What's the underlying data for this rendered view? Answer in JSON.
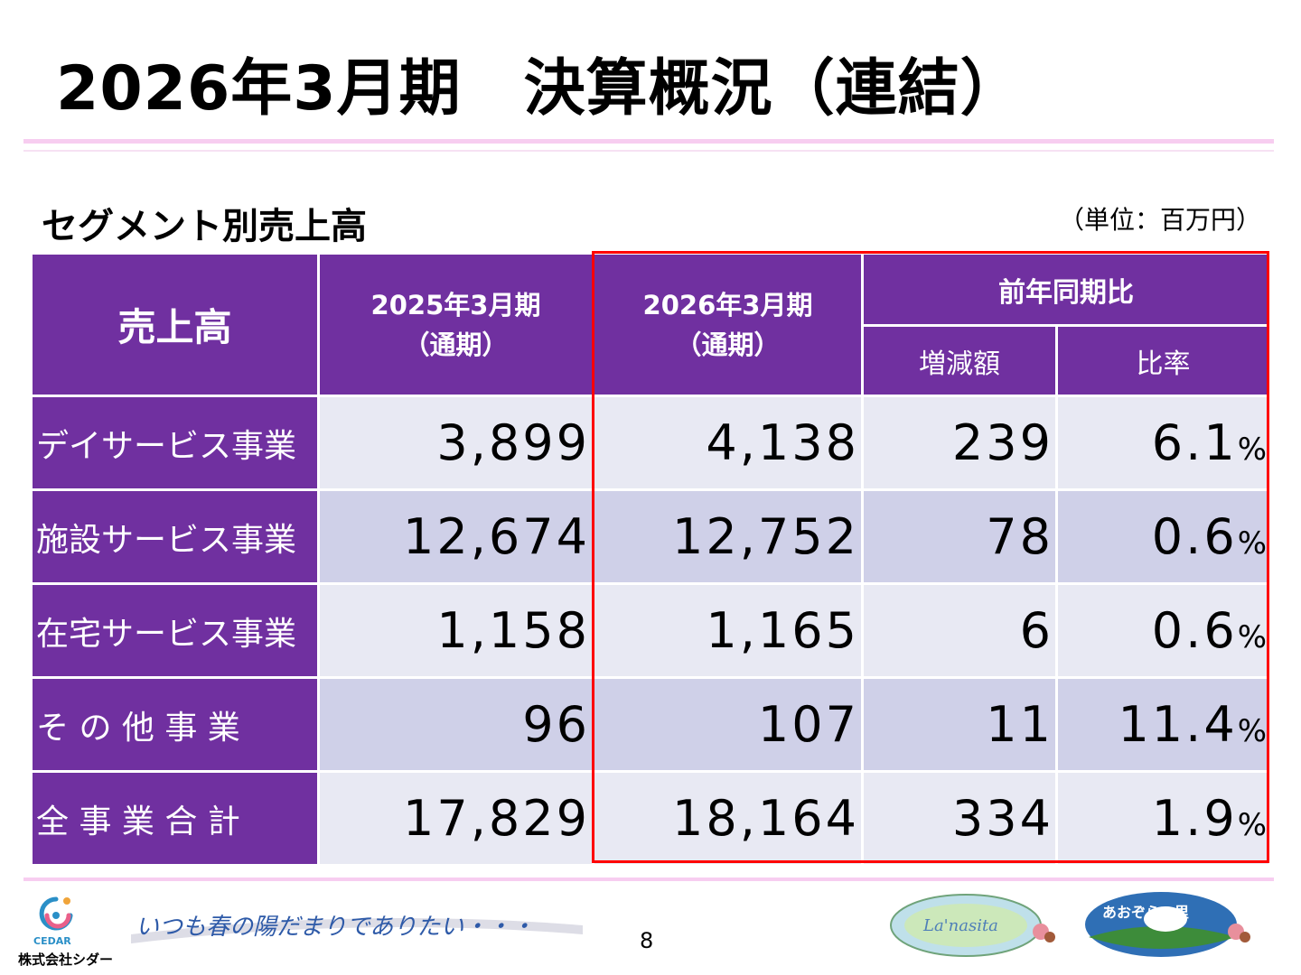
{
  "slide": {
    "title": "2026年3月期　決算概況（連結）",
    "subtitle": "セグメント別売上高",
    "unit": "（単位：百万円）",
    "page_number": "8"
  },
  "table": {
    "header_main": "売上高",
    "col_prev_line1": "2025年3月期",
    "col_prev_line2": "（通期）",
    "col_curr_line1": "2026年3月期",
    "col_curr_line2": "（通期）",
    "col_yoy": "前年同期比",
    "col_diff": "増減額",
    "col_ratio": "比率",
    "rows": [
      {
        "label": "デイサービス事業",
        "prev": "3,899",
        "curr": "4,138",
        "diff": "239",
        "ratio": "6.1",
        "pct": "%"
      },
      {
        "label": "施設サービス事業",
        "prev": "12,674",
        "curr": "12,752",
        "diff": "78",
        "ratio": "0.6",
        "pct": "%"
      },
      {
        "label": "在宅サービス事業",
        "prev": "1,158",
        "curr": "1,165",
        "diff": "6",
        "ratio": "0.6",
        "pct": "%"
      },
      {
        "label": "そ の 他 事 業",
        "prev": "96",
        "curr": "107",
        "diff": "11",
        "ratio": "11.4",
        "pct": "%"
      },
      {
        "label": "全 事 業 合 計",
        "prev": "17,829",
        "curr": "18,164",
        "diff": "334",
        "ratio": "1.9",
        "pct": "%"
      }
    ]
  },
  "footer": {
    "company_logo_text": "CEDAR",
    "company_name": "株式会社シダー",
    "slogan": "いつも春の陽だまりでありたい・・・",
    "badge_left": "La'nasita",
    "badge_right": "あおぞらの里"
  },
  "colors": {
    "header_purple": "#7030a0",
    "row_light": "#e8e9f3",
    "row_dark": "#cfd0e8",
    "highlight_border": "#ff0000",
    "rule_pink": "#f7cdf0"
  }
}
